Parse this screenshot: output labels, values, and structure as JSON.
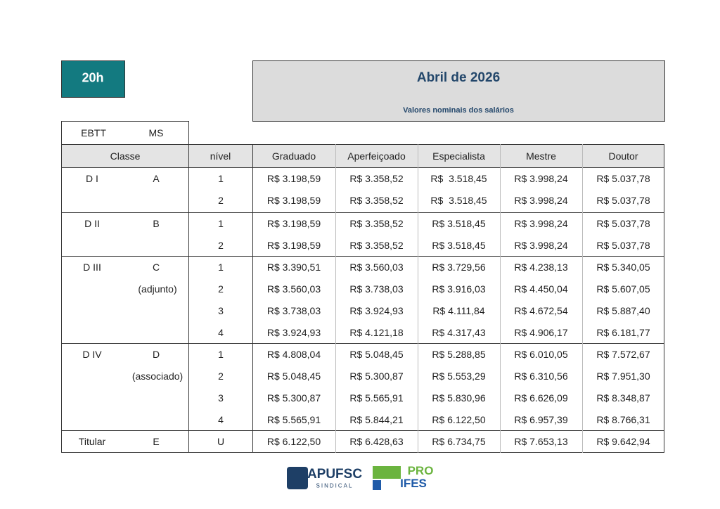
{
  "badge": "20h",
  "header": {
    "title": "Abril de 2026",
    "subtitle": "Valores nominais dos salários"
  },
  "table": {
    "top_headers": [
      "EBTT",
      "MS"
    ],
    "columns": [
      "Classe",
      "nível",
      "Graduado",
      "Aperfeiçoado",
      "Especialista",
      "Mestre",
      "Doutor"
    ],
    "groups": [
      {
        "ebtt": "D I",
        "ms": "A",
        "rows": [
          {
            "nivel": "1",
            "values": [
              "R$ 3.198,59",
              "R$ 3.358,52",
              "R$  3.518,45",
              "R$ 3.998,24",
              "R$ 5.037,78"
            ]
          },
          {
            "nivel": "2",
            "values": [
              "R$ 3.198,59",
              "R$ 3.358,52",
              "R$  3.518,45",
              "R$ 3.998,24",
              "R$ 5.037,78"
            ]
          }
        ]
      },
      {
        "ebtt": "D II",
        "ms": "B",
        "rows": [
          {
            "nivel": "1",
            "values": [
              "R$ 3.198,59",
              "R$ 3.358,52",
              "R$ 3.518,45",
              "R$ 3.998,24",
              "R$ 5.037,78"
            ]
          },
          {
            "nivel": "2",
            "values": [
              "R$ 3.198,59",
              "R$ 3.358,52",
              "R$ 3.518,45",
              "R$ 3.998,24",
              "R$ 5.037,78"
            ]
          }
        ]
      },
      {
        "ebtt": "D III",
        "ms": "C",
        "note": "(adjunto)",
        "rows": [
          {
            "nivel": "1",
            "values": [
              "R$ 3.390,51",
              "R$ 3.560,03",
              "R$ 3.729,56",
              "R$ 4.238,13",
              "R$ 5.340,05"
            ]
          },
          {
            "nivel": "2",
            "values": [
              "R$ 3.560,03",
              "R$ 3.738,03",
              "R$ 3.916,03",
              "R$ 4.450,04",
              "R$ 5.607,05"
            ]
          },
          {
            "nivel": "3",
            "values": [
              "R$ 3.738,03",
              "R$ 3.924,93",
              "R$ 4.111,84",
              "R$ 4.672,54",
              "R$ 5.887,40"
            ]
          },
          {
            "nivel": "4",
            "values": [
              "R$ 3.924,93",
              "R$ 4.121,18",
              "R$ 4.317,43",
              "R$ 4.906,17",
              "R$ 6.181,77"
            ]
          }
        ]
      },
      {
        "ebtt": "D IV",
        "ms": "D",
        "note": "(associado)",
        "rows": [
          {
            "nivel": "1",
            "values": [
              "R$ 4.808,04",
              "R$ 5.048,45",
              "R$ 5.288,85",
              "R$ 6.010,05",
              "R$ 7.572,67"
            ]
          },
          {
            "nivel": "2",
            "values": [
              "R$ 5.048,45",
              "R$ 5.300,87",
              "R$ 5.553,29",
              "R$ 6.310,56",
              "R$ 7.951,30"
            ]
          },
          {
            "nivel": "3",
            "values": [
              "R$ 5.300,87",
              "R$ 5.565,91",
              "R$ 5.830,96",
              "R$ 6.626,09",
              "R$ 8.348,87"
            ]
          },
          {
            "nivel": "4",
            "values": [
              "R$ 5.565,91",
              "R$ 5.844,21",
              "R$ 6.122,50",
              "R$ 6.957,39",
              "R$ 8.766,31"
            ]
          }
        ]
      },
      {
        "ebtt": "Titular",
        "ms": "E",
        "rows": [
          {
            "nivel": "U",
            "values": [
              "R$ 6.122,50",
              "R$ 6.428,63",
              "R$ 6.734,75",
              "R$ 7.653,13",
              "R$ 9.642,94"
            ]
          }
        ]
      }
    ]
  },
  "logos": {
    "apufsc": "APUFSC",
    "apufsc_sub": "SINDICAL",
    "proifes_top": "PRO",
    "proifes_bottom": "IFES"
  }
}
